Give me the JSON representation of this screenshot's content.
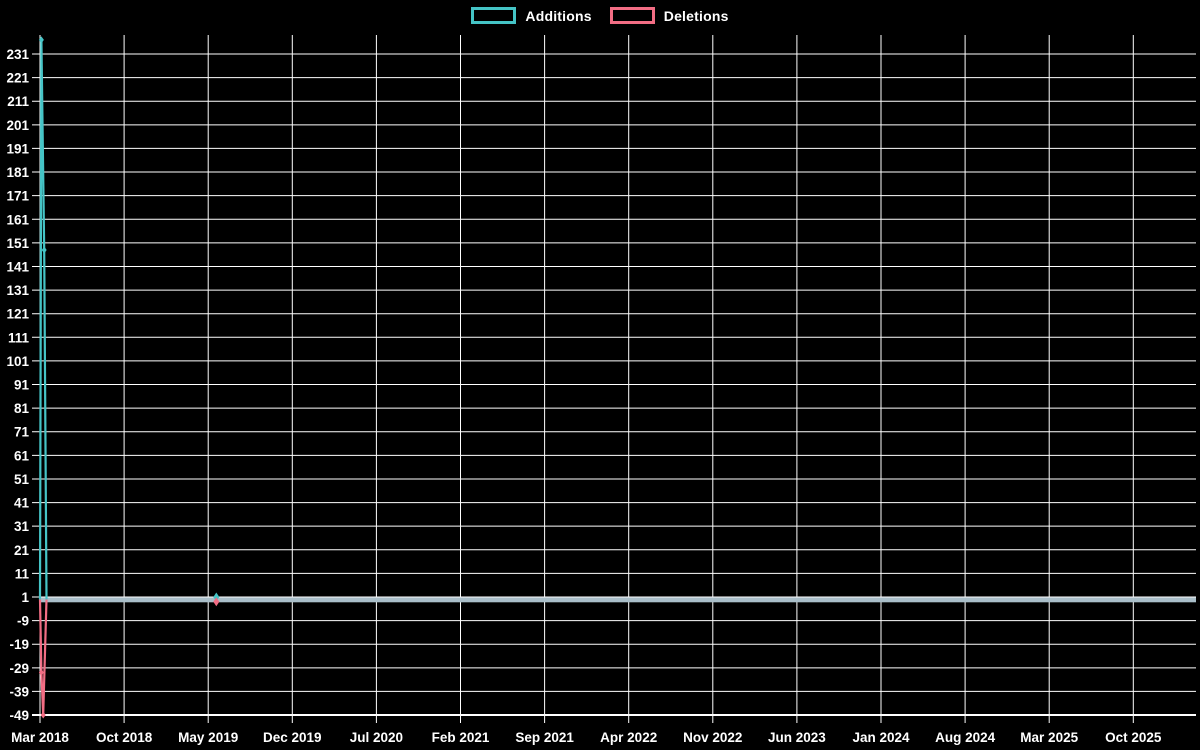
{
  "chart_data": {
    "type": "line",
    "title": "",
    "legend_position": "top",
    "background_color": "#000000",
    "grid_color": "#ffffff",
    "label_color": "#ffffff",
    "flatline_color": "#a9bec9",
    "series": [
      {
        "name": "Additions",
        "color": "#45c4c6"
      },
      {
        "name": "Deletions",
        "color": "#f26d84"
      }
    ],
    "legend": [
      {
        "label": "Additions"
      },
      {
        "label": "Deletions"
      }
    ],
    "x_tick_labels": [
      "Mar 2018",
      "Oct 2018",
      "May 2019",
      "Dec 2019",
      "Jul 2020",
      "Feb 2021",
      "Sep 2021",
      "Apr 2022",
      "Nov 2022",
      "Jun 2023",
      "Jan 2024",
      "Aug 2024",
      "Mar 2025",
      "Oct 2025"
    ],
    "y_tick_values": [
      231,
      221,
      211,
      201,
      191,
      181,
      171,
      161,
      151,
      141,
      131,
      121,
      111,
      101,
      91,
      81,
      71,
      61,
      51,
      41,
      31,
      21,
      11,
      1,
      -9,
      -19,
      -29,
      -39,
      -49
    ],
    "ylim": [
      -49,
      239
    ],
    "data_points": [
      {
        "date": "Mar 2018",
        "additions": 237,
        "deletions": -31
      },
      {
        "date": "Mar 2018",
        "additions": 148,
        "deletions": -49
      },
      {
        "date": "May 2019",
        "additions": 1,
        "deletions": -1
      }
    ],
    "other_weeks": {
      "additions": 0,
      "deletions": 0
    }
  }
}
